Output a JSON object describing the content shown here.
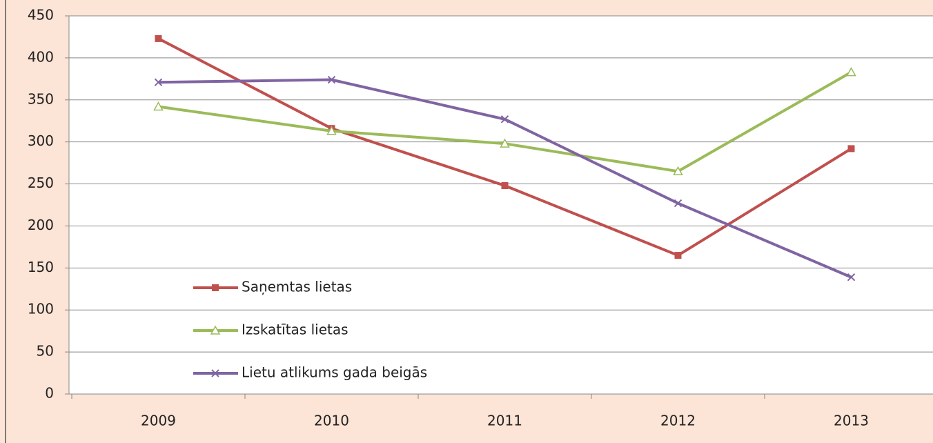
{
  "chart_data": {
    "type": "line",
    "categories": [
      "2009",
      "2010",
      "2011",
      "2012",
      "2013"
    ],
    "series": [
      {
        "name": "Saņemtas lietas",
        "color": "#c0504d",
        "marker": "square",
        "values": [
          423,
          316,
          248,
          165,
          292
        ]
      },
      {
        "name": "Izskatītas lietas",
        "color": "#9bbb59",
        "marker": "triangle",
        "values": [
          342,
          313,
          298,
          265,
          383
        ]
      },
      {
        "name": "Lietu atlikums gada beigās",
        "color": "#8064a2",
        "marker": "x",
        "values": [
          371,
          374,
          327,
          227,
          139
        ]
      }
    ],
    "ylim": [
      0,
      450
    ],
    "yticks": [
      0,
      50,
      100,
      150,
      200,
      250,
      300,
      350,
      400,
      450
    ],
    "grid": true,
    "legend": "left"
  }
}
